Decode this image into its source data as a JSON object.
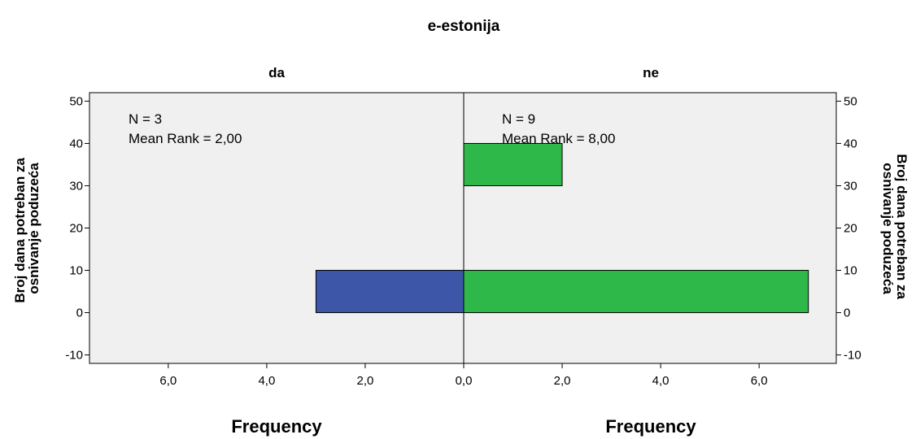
{
  "chart_data": {
    "type": "bar",
    "orientation": "horizontal",
    "title": "e-estonija",
    "panels": [
      {
        "label": "da",
        "annotation": [
          "N = 3",
          "Mean Rank = 2,00"
        ],
        "color": "#3d56a7",
        "bars": [
          {
            "y": 0,
            "frequency": 3
          }
        ]
      },
      {
        "label": "ne",
        "annotation": [
          "N = 9",
          "Mean Rank = 8,00"
        ],
        "color": "#2fb84a",
        "bars": [
          {
            "y": 0,
            "frequency": 7
          },
          {
            "y": 30,
            "frequency": 2
          }
        ]
      }
    ],
    "bin_width": 10,
    "ylabel": "Broj dana potreban za osnivanje poduzeća",
    "xlabel": "Frequency",
    "ylim": [
      -12,
      52
    ],
    "yticks": [
      "-10",
      "0",
      "10",
      "20",
      "30",
      "40",
      "50"
    ],
    "yticks_values": [
      -10,
      0,
      10,
      20,
      30,
      40,
      50
    ],
    "xlim": [
      0,
      7.6
    ],
    "xticks": [
      "6,0",
      "4,0",
      "2,0",
      "0,0",
      "2,0",
      "4,0",
      "6,0"
    ],
    "xticks_values": [
      6,
      4,
      2,
      0,
      2,
      4,
      6
    ],
    "plot_background": "#f0f0f0",
    "grid": false
  }
}
